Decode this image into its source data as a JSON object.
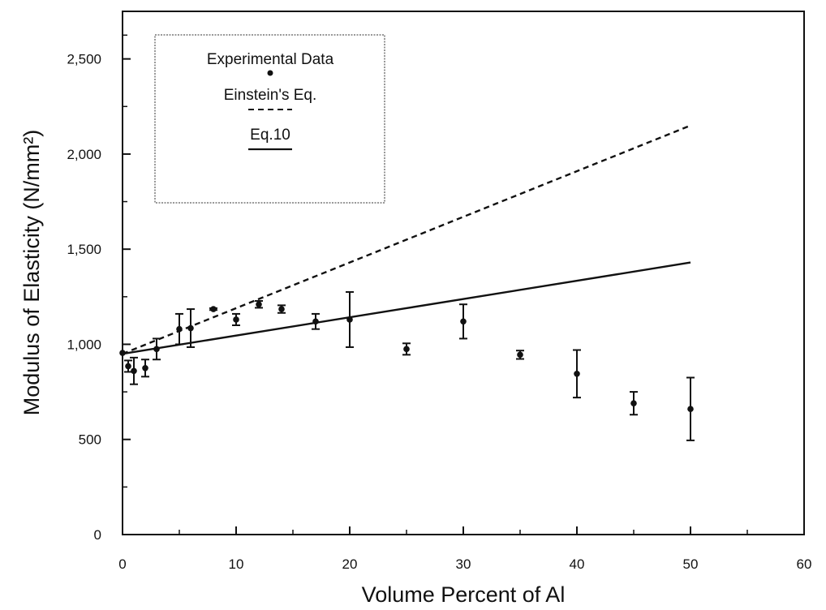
{
  "chart_data": {
    "type": "scatter",
    "title": "",
    "xlabel": "Volume Percent of Al",
    "ylabel": "Modulus of Elasticity (N/mm²)",
    "xlim": [
      0,
      60
    ],
    "ylim": [
      0,
      2750
    ],
    "xticks": [
      0,
      10,
      20,
      30,
      40,
      50,
      60
    ],
    "xtick_labels": [
      "0",
      "10",
      "20",
      "30",
      "40",
      "50",
      "60"
    ],
    "yticks": [
      0,
      500,
      1000,
      1500,
      2000,
      2500
    ],
    "ytick_labels": [
      "0",
      "500",
      "1,000",
      "1,500",
      "2,000",
      "2,500"
    ],
    "grid": false,
    "legend": {
      "placement": "top-left",
      "entries": [
        {
          "label": "Experimental Data",
          "marker": "dot"
        },
        {
          "label": "Einstein's Eq.",
          "marker": "dashed-line"
        },
        {
          "label": "Eq.10",
          "marker": "solid-line"
        }
      ]
    },
    "series": [
      {
        "name": "Experimental Data",
        "kind": "points-with-error-bars",
        "points": [
          {
            "x": 0.0,
            "y": 955,
            "err_low": 0,
            "err_high": 0
          },
          {
            "x": 0.5,
            "y": 885,
            "err_low": 30,
            "err_high": 30
          },
          {
            "x": 1.0,
            "y": 860,
            "err_low": 70,
            "err_high": 70
          },
          {
            "x": 2.0,
            "y": 875,
            "err_low": 45,
            "err_high": 45
          },
          {
            "x": 3.0,
            "y": 975,
            "err_low": 55,
            "err_high": 55
          },
          {
            "x": 5.0,
            "y": 1080,
            "err_low": 80,
            "err_high": 80
          },
          {
            "x": 6.0,
            "y": 1085,
            "err_low": 100,
            "err_high": 100
          },
          {
            "x": 8.0,
            "y": 1185,
            "err_low": 5,
            "err_high": 5
          },
          {
            "x": 10.0,
            "y": 1130,
            "err_low": 30,
            "err_high": 30
          },
          {
            "x": 12.0,
            "y": 1210,
            "err_low": 18,
            "err_high": 18
          },
          {
            "x": 14.0,
            "y": 1185,
            "err_low": 20,
            "err_high": 20
          },
          {
            "x": 17.0,
            "y": 1120,
            "err_low": 40,
            "err_high": 40
          },
          {
            "x": 20.0,
            "y": 1130,
            "err_low": 145,
            "err_high": 145
          },
          {
            "x": 25.0,
            "y": 975,
            "err_low": 30,
            "err_high": 30
          },
          {
            "x": 30.0,
            "y": 1120,
            "err_low": 90,
            "err_high": 90
          },
          {
            "x": 35.0,
            "y": 945,
            "err_low": 22,
            "err_high": 22
          },
          {
            "x": 40.0,
            "y": 845,
            "err_low": 125,
            "err_high": 125
          },
          {
            "x": 45.0,
            "y": 690,
            "err_low": 60,
            "err_high": 60
          },
          {
            "x": 50.0,
            "y": 660,
            "err_low": 165,
            "err_high": 165
          }
        ]
      },
      {
        "name": "Einstein's Eq.",
        "kind": "line",
        "style": "dashed",
        "x": [
          0,
          50
        ],
        "y": [
          950,
          2150
        ]
      },
      {
        "name": "Eq.10",
        "kind": "line",
        "style": "solid",
        "x": [
          0,
          50
        ],
        "y": [
          950,
          1430
        ]
      }
    ]
  }
}
